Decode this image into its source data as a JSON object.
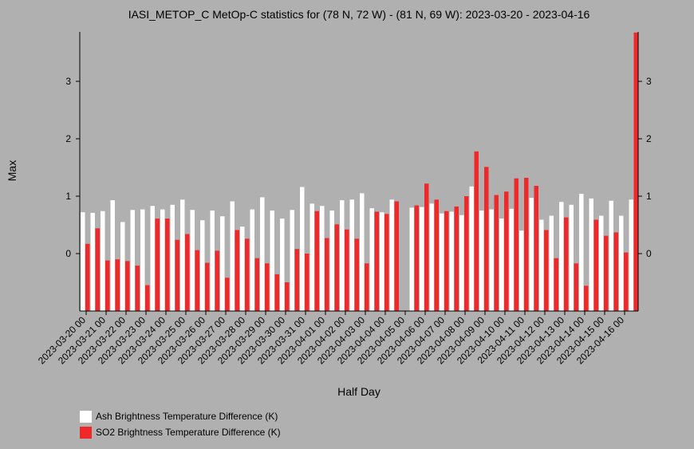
{
  "chart_data": {
    "type": "bar",
    "title": "IASI_METOP_C MetOp-C statistics for (78 N, 72 W) - (81 N, 69 W): 2023-03-20 - 2023-04-16",
    "xlabel": "Half Day",
    "ylabel": "Max",
    "ylim": [
      -1,
      3.85
    ],
    "yticks": [
      0,
      1,
      2,
      3
    ],
    "x_tick_labels": [
      "2023-03-20 00",
      "2023-03-21 00",
      "2023-03-22 00",
      "2023-03-23 00",
      "2023-03-24 00",
      "2023-03-25 00",
      "2023-03-26 00",
      "2023-03-27 00",
      "2023-03-28 00",
      "2023-03-29 00",
      "2023-03-30 00",
      "2023-03-31 00",
      "2023-04-01 00",
      "2023-04-02 00",
      "2023-04-03 00",
      "2023-04-04 00",
      "2023-04-05 00",
      "2023-04-06 00",
      "2023-04-07 00",
      "2023-04-08 00",
      "2023-04-09 00",
      "2023-04-10 00",
      "2023-04-11 00",
      "2023-04-12 00",
      "2023-04-13 00",
      "2023-04-14 00",
      "2023-04-15 00",
      "2023-04-16 00"
    ],
    "grid": false,
    "legend_position": "bottom-left",
    "series": [
      {
        "name": "Ash Brightness Temperature Difference (K)",
        "color": "#ffffff",
        "values": [
          0.72,
          0.71,
          0.74,
          0.93,
          0.55,
          0.76,
          0.77,
          0.83,
          0.77,
          0.85,
          0.94,
          0.76,
          0.58,
          0.75,
          0.65,
          0.91,
          0.47,
          0.77,
          0.98,
          0.75,
          0.61,
          0.76,
          1.16,
          0.87,
          0.83,
          0.75,
          0.93,
          0.94,
          1.05,
          0.79,
          0.72,
          0.94,
          null,
          0.8,
          0.81,
          0.87,
          0.7,
          0.73,
          0.67,
          1.17,
          0.75,
          0.77,
          0.61,
          0.78,
          0.4,
          0.97,
          0.59,
          0.66,
          0.9,
          0.85,
          1.04,
          0.96,
          0.66,
          0.92,
          0.66,
          0.94
        ]
      },
      {
        "name": "SO2 Brightness Temperature Difference (K)",
        "color": "#ef2929",
        "values": [
          0.17,
          0.44,
          -0.12,
          -0.1,
          -0.13,
          -0.21,
          -0.55,
          0.61,
          0.61,
          0.24,
          0.34,
          0.06,
          -0.16,
          0.05,
          -0.42,
          0.41,
          0.26,
          -0.08,
          -0.17,
          -0.36,
          -0.5,
          0.08,
          0.0,
          0.74,
          0.27,
          0.51,
          0.42,
          0.26,
          -0.17,
          0.73,
          0.69,
          0.91,
          null,
          0.84,
          1.22,
          0.94,
          0.74,
          0.82,
          1.0,
          1.78,
          1.51,
          1.02,
          1.08,
          1.31,
          1.32,
          1.18,
          0.41,
          -0.08,
          0.63,
          -0.17,
          -0.56,
          0.59,
          0.31,
          0.37,
          0.02,
          3.85
        ]
      }
    ]
  }
}
